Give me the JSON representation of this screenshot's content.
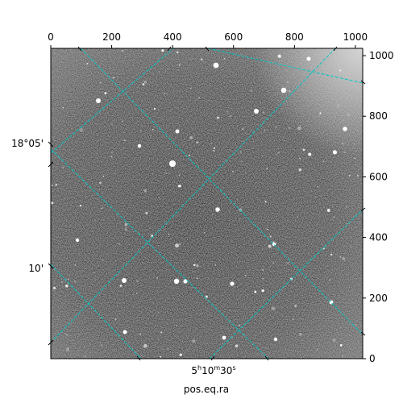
{
  "chart_data": {
    "type": "image",
    "pixel_axes": {
      "x_ticks": [
        0,
        200,
        400,
        600,
        800,
        1000
      ],
      "y_ticks": [
        0,
        200,
        400,
        600,
        800,
        1000
      ],
      "xlim": [
        0,
        1024
      ],
      "ylim": [
        0,
        1024
      ]
    },
    "world_axes": {
      "xlabel": "pos.eq.ra",
      "ra_tick_label": {
        "hours": "5",
        "minutes": "10",
        "seconds": "30"
      },
      "dec_tick_labels": [
        "18°05'",
        "10'"
      ]
    },
    "grid": true,
    "grid_color": "#00c8c8",
    "image_colormap": "gray",
    "image_kind": "star field"
  }
}
